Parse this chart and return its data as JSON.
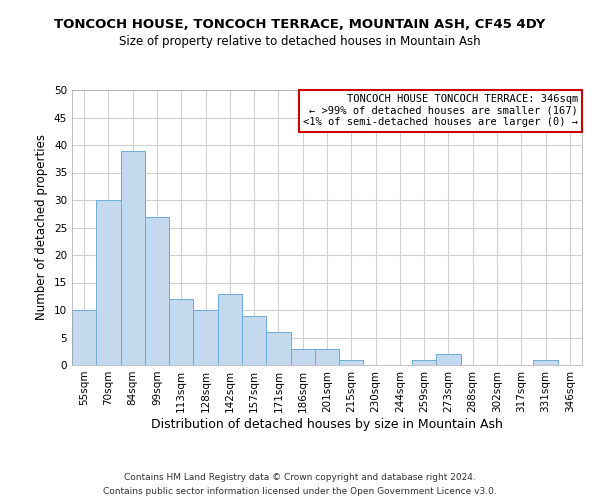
{
  "title": "TONCOCH HOUSE, TONCOCH TERRACE, MOUNTAIN ASH, CF45 4DY",
  "subtitle": "Size of property relative to detached houses in Mountain Ash",
  "xlabel": "Distribution of detached houses by size in Mountain Ash",
  "ylabel": "Number of detached properties",
  "bin_labels": [
    "55sqm",
    "70sqm",
    "84sqm",
    "99sqm",
    "113sqm",
    "128sqm",
    "142sqm",
    "157sqm",
    "171sqm",
    "186sqm",
    "201sqm",
    "215sqm",
    "230sqm",
    "244sqm",
    "259sqm",
    "273sqm",
    "288sqm",
    "302sqm",
    "317sqm",
    "331sqm",
    "346sqm"
  ],
  "bar_values": [
    10,
    30,
    39,
    27,
    12,
    10,
    13,
    9,
    6,
    3,
    3,
    1,
    0,
    0,
    1,
    2,
    0,
    0,
    0,
    1,
    0
  ],
  "bar_color": "#c5d9ee",
  "bar_edge_color": "#6baed6",
  "ylim": [
    0,
    50
  ],
  "yticks": [
    0,
    5,
    10,
    15,
    20,
    25,
    30,
    35,
    40,
    45,
    50
  ],
  "annotation_box_text": [
    "TONCOCH HOUSE TONCOCH TERRACE: 346sqm",
    "← >99% of detached houses are smaller (167)",
    "<1% of semi-detached houses are larger (0) →"
  ],
  "annotation_box_color": "#ffffff",
  "annotation_box_edge_color": "#cc0000",
  "footer_line1": "Contains HM Land Registry data © Crown copyright and database right 2024.",
  "footer_line2": "Contains public sector information licensed under the Open Government Licence v3.0.",
  "background_color": "#ffffff",
  "grid_color": "#d0d0d0",
  "title_fontsize": 9.5,
  "subtitle_fontsize": 8.5,
  "xlabel_fontsize": 9,
  "ylabel_fontsize": 8.5,
  "tick_fontsize": 7.5,
  "footer_fontsize": 6.5,
  "annot_fontsize": 7.5
}
